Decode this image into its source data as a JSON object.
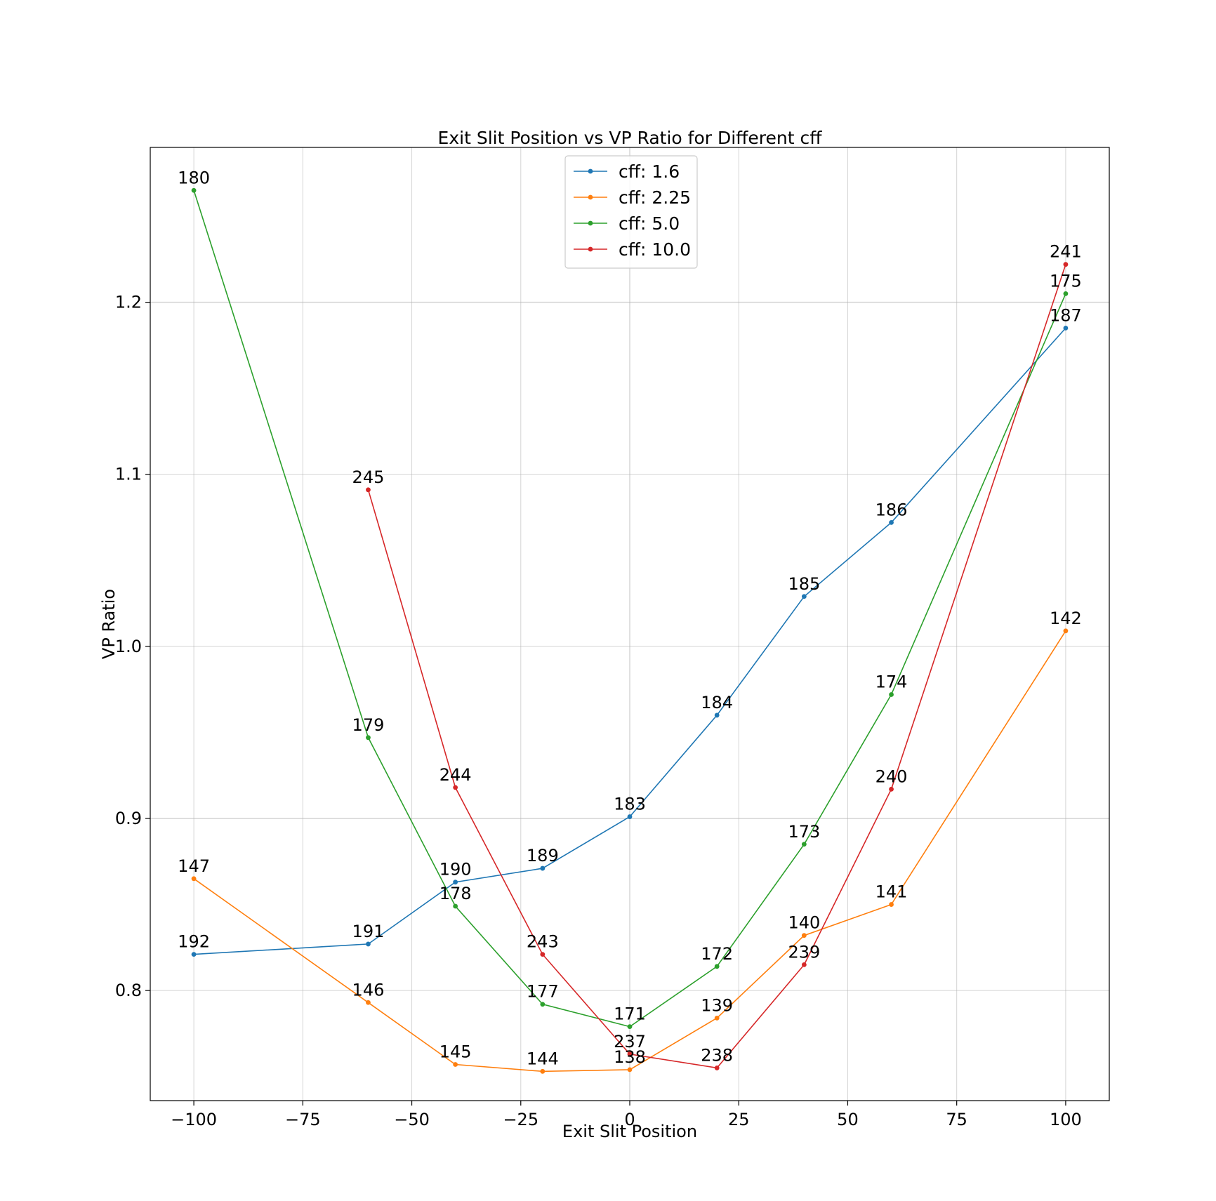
{
  "chart_data": {
    "type": "line",
    "title": "Exit Slit Position vs VP Ratio for Different cff",
    "xlabel": "Exit Slit Position",
    "ylabel": "VP Ratio",
    "xlim": [
      -110,
      110
    ],
    "ylim": [
      0.736,
      1.29
    ],
    "x_ticks": [
      -100,
      -75,
      -50,
      -25,
      0,
      25,
      50,
      75,
      100
    ],
    "x_tick_labels": [
      "−100",
      "−75",
      "−50",
      "−25",
      "0",
      "25",
      "50",
      "75",
      "100"
    ],
    "y_ticks": [
      0.8,
      0.9,
      1.0,
      1.1,
      1.2
    ],
    "y_tick_labels": [
      "0.8",
      "0.9",
      "1.0",
      "1.1",
      "1.2"
    ],
    "grid": true,
    "legend_position": "top-center",
    "series": [
      {
        "name": "cff: 1.6",
        "color": "#1f77b4",
        "points": [
          {
            "x": -100,
            "y": 0.821,
            "label": "192"
          },
          {
            "x": -60,
            "y": 0.827,
            "label": "191"
          },
          {
            "x": -40,
            "y": 0.863,
            "label": "190"
          },
          {
            "x": -20,
            "y": 0.871,
            "label": "189"
          },
          {
            "x": 0,
            "y": 0.901,
            "label": "183"
          },
          {
            "x": 20,
            "y": 0.96,
            "label": "184"
          },
          {
            "x": 40,
            "y": 1.029,
            "label": "185"
          },
          {
            "x": 60,
            "y": 1.072,
            "label": "186"
          },
          {
            "x": 100,
            "y": 1.185,
            "label": "187"
          }
        ]
      },
      {
        "name": "cff: 2.25",
        "color": "#ff7f0e",
        "points": [
          {
            "x": -100,
            "y": 0.865,
            "label": "147"
          },
          {
            "x": -60,
            "y": 0.793,
            "label": "146"
          },
          {
            "x": -40,
            "y": 0.757,
            "label": "145"
          },
          {
            "x": -20,
            "y": 0.753,
            "label": "144"
          },
          {
            "x": 0,
            "y": 0.754,
            "label": "138"
          },
          {
            "x": 20,
            "y": 0.784,
            "label": "139"
          },
          {
            "x": 40,
            "y": 0.832,
            "label": "140"
          },
          {
            "x": 60,
            "y": 0.85,
            "label": "141"
          },
          {
            "x": 100,
            "y": 1.009,
            "label": "142"
          }
        ]
      },
      {
        "name": "cff: 5.0",
        "color": "#2ca02c",
        "points": [
          {
            "x": -100,
            "y": 1.265,
            "label": "180"
          },
          {
            "x": -60,
            "y": 0.947,
            "label": "179"
          },
          {
            "x": -40,
            "y": 0.849,
            "label": "178"
          },
          {
            "x": -20,
            "y": 0.792,
            "label": "177"
          },
          {
            "x": 0,
            "y": 0.779,
            "label": "171"
          },
          {
            "x": 20,
            "y": 0.814,
            "label": "172"
          },
          {
            "x": 40,
            "y": 0.885,
            "label": "173"
          },
          {
            "x": 60,
            "y": 0.972,
            "label": "174"
          },
          {
            "x": 100,
            "y": 1.205,
            "label": "175"
          }
        ]
      },
      {
        "name": "cff: 10.0",
        "color": "#d62728",
        "points": [
          {
            "x": -60,
            "y": 1.091,
            "label": "245"
          },
          {
            "x": -40,
            "y": 0.918,
            "label": "244"
          },
          {
            "x": -20,
            "y": 0.821,
            "label": "243"
          },
          {
            "x": 0,
            "y": 0.763,
            "label": "237"
          },
          {
            "x": 20,
            "y": 0.755,
            "label": "238"
          },
          {
            "x": 40,
            "y": 0.815,
            "label": "239"
          },
          {
            "x": 60,
            "y": 0.917,
            "label": "240"
          },
          {
            "x": 100,
            "y": 1.222,
            "label": "241"
          }
        ]
      }
    ]
  }
}
